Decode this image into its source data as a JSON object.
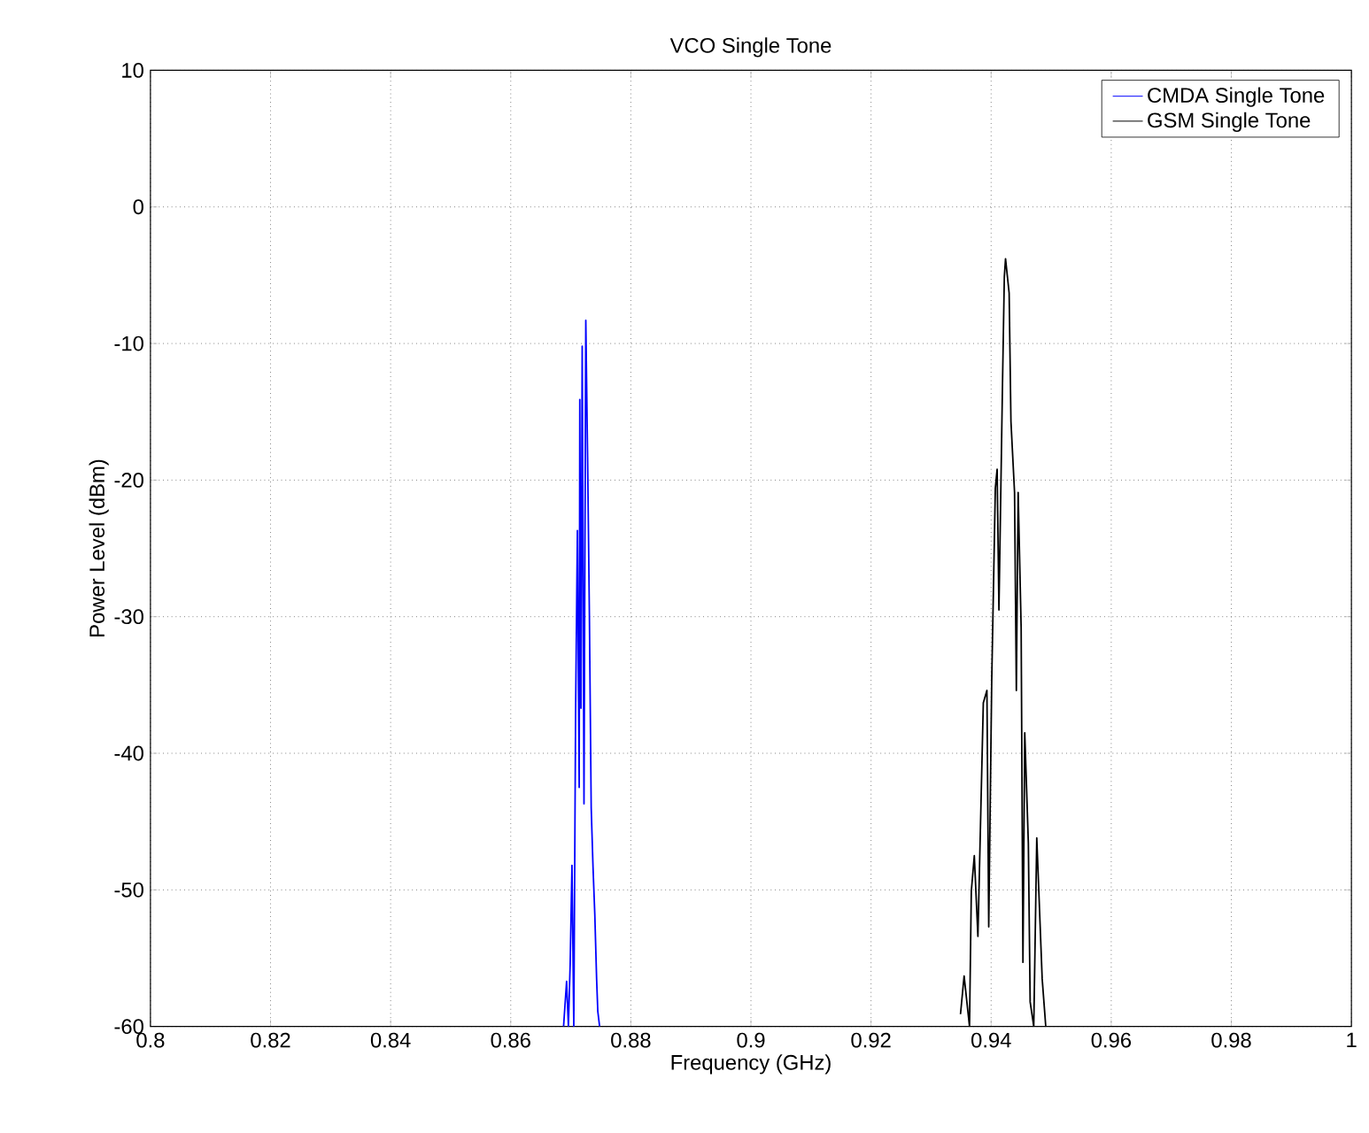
{
  "chart_data": {
    "type": "line",
    "title": "VCO Single Tone",
    "xlabel": "Frequency (GHz)",
    "ylabel": "Power Level (dBm)",
    "xlim": [
      0.8,
      1
    ],
    "ylim": [
      -60,
      10
    ],
    "xticks": [
      0.8,
      0.82,
      0.84,
      0.86,
      0.88,
      0.9,
      0.92,
      0.94,
      0.96,
      0.98,
      1
    ],
    "yticks": [
      -60,
      -50,
      -40,
      -30,
      -20,
      -10,
      0,
      10
    ],
    "grid": true,
    "legend": "top right",
    "series": [
      {
        "name": "CMDA Single Tone",
        "color": "#0000ff",
        "x": [
          0.8688,
          0.8693,
          0.8696,
          0.8699,
          0.8702,
          0.8705,
          0.8708,
          0.8711,
          0.8714,
          0.8715,
          0.8717,
          0.8719,
          0.8722,
          0.8725,
          0.8728,
          0.8731,
          0.8734,
          0.8737,
          0.874,
          0.8743,
          0.8745,
          0.8748
        ],
        "values": [
          -60,
          -56.7,
          -60,
          -55.4,
          -48.2,
          -60,
          -37.2,
          -23.7,
          -42.5,
          -14.1,
          -36.7,
          -10.2,
          -43.7,
          -8.3,
          -18.3,
          -29.9,
          -44,
          -48.3,
          -51.8,
          -56.5,
          -58.9,
          -60
        ]
      },
      {
        "name": "GSM Single Tone",
        "color": "#000000",
        "x": [
          0.9349,
          0.9355,
          0.9364,
          0.9367,
          0.9372,
          0.9378,
          0.9387,
          0.9393,
          0.9396,
          0.9401,
          0.9407,
          0.941,
          0.9413,
          0.9419,
          0.9422,
          0.9424,
          0.943,
          0.9433,
          0.9439,
          0.9442,
          0.9445,
          0.945,
          0.9453,
          0.9456,
          0.9462,
          0.9465,
          0.9471,
          0.9476,
          0.9479,
          0.9485,
          0.9491
        ],
        "values": [
          -59.1,
          -56.3,
          -60,
          -50.1,
          -47.5,
          -53.4,
          -36.3,
          -35.4,
          -52.7,
          -34.7,
          -20.6,
          -19.2,
          -29.5,
          -12.8,
          -5.1,
          -3.8,
          -6.3,
          -15.7,
          -20.9,
          -35.4,
          -20.9,
          -30.8,
          -55.3,
          -38.5,
          -46.6,
          -58.2,
          -60,
          -46.2,
          -49.6,
          -56.5,
          -60
        ]
      }
    ]
  }
}
